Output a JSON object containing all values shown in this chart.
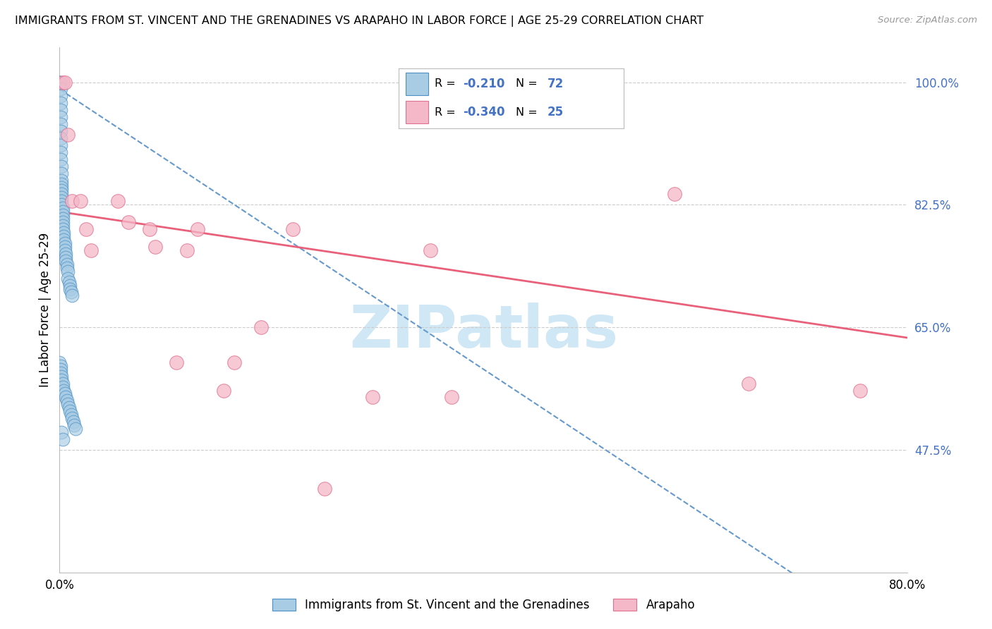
{
  "title": "IMMIGRANTS FROM ST. VINCENT AND THE GRENADINES VS ARAPAHO IN LABOR FORCE | AGE 25-29 CORRELATION CHART",
  "source": "Source: ZipAtlas.com",
  "ylabel": "In Labor Force | Age 25-29",
  "xmin": 0.0,
  "xmax": 0.8,
  "ymin": 0.3,
  "ymax": 1.05,
  "yticks": [
    0.475,
    0.65,
    0.825,
    1.0
  ],
  "ytick_labels": [
    "47.5%",
    "65.0%",
    "82.5%",
    "100.0%"
  ],
  "xticks": [
    0.0,
    0.1,
    0.2,
    0.3,
    0.4,
    0.5,
    0.6,
    0.7,
    0.8
  ],
  "xtick_labels": [
    "0.0%",
    "",
    "",
    "",
    "",
    "",
    "",
    "",
    "80.0%"
  ],
  "blue_label": "Immigrants from St. Vincent and the Grenadines",
  "pink_label": "Arapaho",
  "blue_R": "-0.210",
  "blue_N": "72",
  "pink_R": "-0.340",
  "pink_N": "25",
  "blue_color": "#a8cce4",
  "pink_color": "#f4b8c8",
  "blue_edge": "#4a90c4",
  "pink_edge": "#e07090",
  "trend_blue_color": "#6699cc",
  "trend_pink_color": "#e8607a",
  "watermark": "ZIPatlas",
  "watermark_color": "#d0e8f5",
  "blue_dots_x": [
    0.0,
    0.0,
    0.0,
    0.001,
    0.001,
    0.001,
    0.001,
    0.001,
    0.001,
    0.001,
    0.001,
    0.001,
    0.001,
    0.001,
    0.001,
    0.002,
    0.002,
    0.002,
    0.002,
    0.002,
    0.002,
    0.002,
    0.002,
    0.002,
    0.002,
    0.003,
    0.003,
    0.003,
    0.003,
    0.003,
    0.003,
    0.003,
    0.004,
    0.004,
    0.004,
    0.005,
    0.005,
    0.005,
    0.006,
    0.006,
    0.006,
    0.007,
    0.007,
    0.008,
    0.008,
    0.009,
    0.01,
    0.01,
    0.011,
    0.012,
    0.0,
    0.001,
    0.001,
    0.001,
    0.002,
    0.002,
    0.003,
    0.003,
    0.004,
    0.005,
    0.006,
    0.007,
    0.008,
    0.009,
    0.01,
    0.011,
    0.012,
    0.013,
    0.014,
    0.015,
    0.002,
    0.003
  ],
  "blue_dots_y": [
    1.0,
    1.0,
    1.0,
    1.0,
    0.99,
    0.98,
    0.97,
    0.96,
    0.95,
    0.94,
    0.93,
    0.92,
    0.91,
    0.9,
    0.89,
    0.88,
    0.87,
    0.86,
    0.855,
    0.85,
    0.845,
    0.84,
    0.835,
    0.83,
    0.825,
    0.82,
    0.815,
    0.81,
    0.805,
    0.8,
    0.795,
    0.79,
    0.785,
    0.78,
    0.775,
    0.77,
    0.765,
    0.76,
    0.755,
    0.75,
    0.745,
    0.74,
    0.735,
    0.73,
    0.72,
    0.715,
    0.71,
    0.705,
    0.7,
    0.695,
    0.6,
    0.595,
    0.59,
    0.585,
    0.58,
    0.575,
    0.57,
    0.565,
    0.56,
    0.555,
    0.55,
    0.545,
    0.54,
    0.535,
    0.53,
    0.525,
    0.52,
    0.515,
    0.51,
    0.505,
    0.5,
    0.49
  ],
  "pink_dots_x": [
    0.003,
    0.005,
    0.008,
    0.012,
    0.02,
    0.025,
    0.03,
    0.055,
    0.065,
    0.085,
    0.09,
    0.11,
    0.12,
    0.13,
    0.155,
    0.165,
    0.19,
    0.22,
    0.25,
    0.295,
    0.35,
    0.37,
    0.58,
    0.65,
    0.755
  ],
  "pink_dots_y": [
    1.0,
    1.0,
    0.925,
    0.83,
    0.83,
    0.79,
    0.76,
    0.83,
    0.8,
    0.79,
    0.765,
    0.6,
    0.76,
    0.79,
    0.56,
    0.6,
    0.65,
    0.79,
    0.42,
    0.55,
    0.76,
    0.55,
    0.84,
    0.57,
    0.56
  ],
  "blue_trend_x": [
    0.0,
    0.22
  ],
  "blue_trend_y": [
    0.99,
    0.77
  ],
  "pink_trend_x": [
    0.0,
    0.8
  ],
  "pink_trend_y": [
    0.815,
    0.635
  ]
}
